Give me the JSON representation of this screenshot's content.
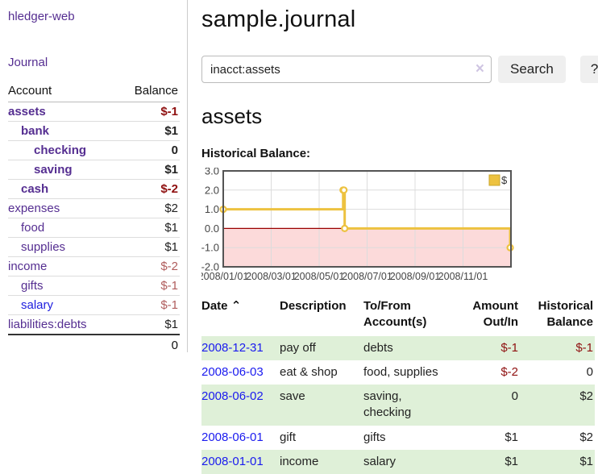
{
  "app": {
    "brand": "hledger-web",
    "nav_journal": "Journal"
  },
  "colors": {
    "link_purple": "#552e91",
    "link_blue": "#2020df",
    "negative_strong": "#8f1010",
    "negative_muted": "#b05d5d",
    "row_stripe_green": "#dff0d8",
    "chart_line_gold": "#EDC240",
    "chart_negative_fill": "#fcdada",
    "chart_zero_line": "#990000",
    "chart_border": "#545454"
  },
  "sidebar": {
    "header": {
      "account": "Account",
      "balance": "Balance"
    },
    "rows": [
      {
        "name": "assets",
        "balance": "$-1",
        "depth": 0,
        "emph": true
      },
      {
        "name": "bank",
        "balance": "$1",
        "depth": 1,
        "emph": true
      },
      {
        "name": "checking",
        "balance": "0",
        "depth": 2,
        "emph": true
      },
      {
        "name": "saving",
        "balance": "$1",
        "depth": 2,
        "emph": true
      },
      {
        "name": "cash",
        "balance": "$-2",
        "depth": 1,
        "emph": true
      },
      {
        "name": "expenses",
        "balance": "$2",
        "depth": 0
      },
      {
        "name": "food",
        "balance": "$1",
        "depth": 1
      },
      {
        "name": "supplies",
        "balance": "$1",
        "depth": 1
      },
      {
        "name": "income",
        "balance": "$-2",
        "depth": 0
      },
      {
        "name": "gifts",
        "balance": "$-1",
        "depth": 1
      },
      {
        "name": "salary",
        "balance": "$-1",
        "depth": 1,
        "blue": true
      },
      {
        "name": "liabilities:debts",
        "balance": "$1",
        "depth": 0
      }
    ],
    "total": "0"
  },
  "header": {
    "title": "sample.journal"
  },
  "search": {
    "value": "inacct:assets",
    "clear_icon": "×",
    "button": "Search",
    "help_button": "?"
  },
  "account_page": {
    "heading": "assets",
    "chart_label": "Historical Balance:"
  },
  "chart_data": {
    "type": "line",
    "title": "Historical Balance",
    "step": true,
    "series": [
      {
        "name": "$",
        "points": [
          [
            "2008-01-01",
            1
          ],
          [
            "2008-06-01",
            2
          ],
          [
            "2008-06-02",
            2
          ],
          [
            "2008-06-03",
            0
          ],
          [
            "2008-12-31",
            -1
          ]
        ]
      }
    ],
    "x_range": [
      "2008-01-01",
      "2009-01-01"
    ],
    "ylim": [
      -2,
      3
    ],
    "yticks": [
      "3.0",
      "2.0",
      "1.0",
      "0.0",
      "-1.0",
      "-2.0"
    ],
    "xticks": [
      "2008/01/01",
      "2008/03/01",
      "2008/05/01",
      "2008/07/01",
      "2008/09/01",
      "2008/11/01"
    ],
    "grid": true,
    "legend_position": "top-right"
  },
  "register": {
    "sort_icon": "⌃",
    "columns": {
      "date": "Date",
      "description": "Description",
      "accounts": "To/From Account(s)",
      "amount": "Amount Out/In",
      "balance": "Historical Balance"
    },
    "rows": [
      {
        "date": "2008-12-31",
        "description": "pay off",
        "accounts": "debts",
        "amount": "$-1",
        "balance": "$-1"
      },
      {
        "date": "2008-06-03",
        "description": "eat & shop",
        "accounts": "food, supplies",
        "amount": "$-2",
        "balance": "0"
      },
      {
        "date": "2008-06-02",
        "description": "save",
        "accounts": "saving, checking",
        "amount": "0",
        "balance": "$2"
      },
      {
        "date": "2008-06-01",
        "description": "gift",
        "accounts": "gifts",
        "amount": "$1",
        "balance": "$2"
      },
      {
        "date": "2008-01-01",
        "description": "income",
        "accounts": "salary",
        "amount": "$1",
        "balance": "$1"
      }
    ]
  }
}
